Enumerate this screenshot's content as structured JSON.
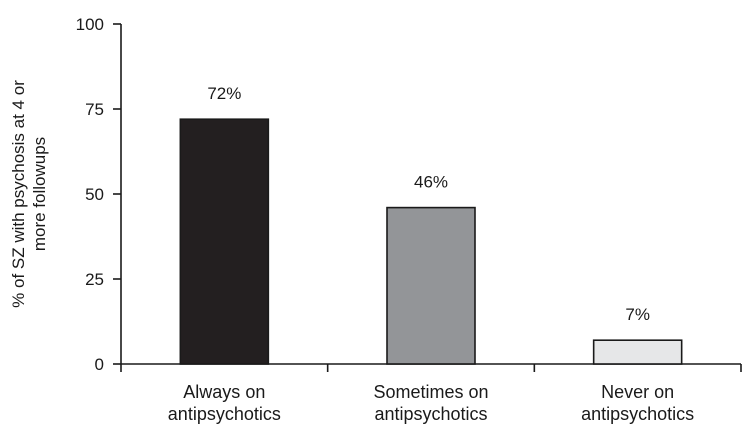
{
  "chart_data": {
    "type": "bar",
    "title": "",
    "xlabel": "",
    "ylabel_lines": [
      "% of SZ with psychosis at 4 or",
      "more followups"
    ],
    "categories": [
      [
        "Always on",
        "antipsychotics"
      ],
      [
        "Sometimes on",
        "antipsychotics"
      ],
      [
        "Never on",
        "antipsychotics"
      ]
    ],
    "values": [
      72,
      46,
      7
    ],
    "value_labels": [
      "72%",
      "46%",
      "7%"
    ],
    "bar_colors": [
      "#231f20",
      "#939598",
      "#e6e7e8"
    ],
    "ylim": [
      0,
      100
    ],
    "yticks": [
      0,
      25,
      50,
      75,
      100
    ],
    "ytick_labels": [
      "0",
      "25",
      "50",
      "75",
      "100"
    ],
    "grid": false,
    "legend": "none"
  }
}
